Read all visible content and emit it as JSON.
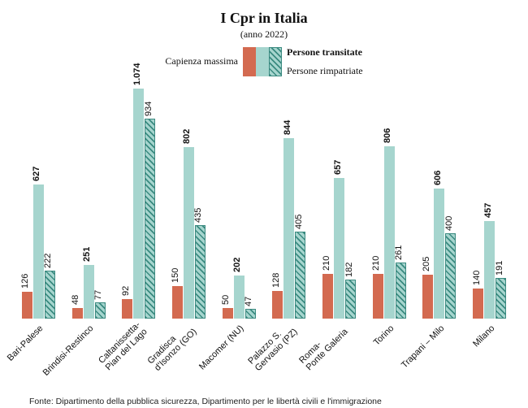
{
  "title": "I Cpr in Italia",
  "subtitle": "(anno 2022)",
  "legend": {
    "left": "Capienza\nmassima",
    "right_top": "Persone transitate",
    "right_bottom": "Persone rimpatriate"
  },
  "chart": {
    "type": "bar",
    "ymax": 1100,
    "bar_colors": {
      "capienza": "#d36a50",
      "transitate": "#a6d5ce",
      "rimpatriate_hatch": "#3a8a80"
    },
    "background_color": "#ffffff",
    "categories": [
      "Bari-Palese",
      "Brindisi-Restinco",
      "Caltanissetta-\nPian del Lago",
      "Gradisca\nd'Isonzo (GO)",
      "Macomer (NU)",
      "Palazzo S.\nGervasio (PZ)",
      "Roma-\nPonte Galeria",
      "Torino",
      "Trapani – Milo",
      "Milano"
    ],
    "series": {
      "capienza": [
        126,
        48,
        92,
        150,
        50,
        128,
        210,
        210,
        205,
        140
      ],
      "transitate": [
        627,
        251,
        1074,
        802,
        202,
        844,
        657,
        806,
        606,
        457
      ],
      "rimpatriate": [
        222,
        77,
        934,
        435,
        47,
        405,
        182,
        261,
        400,
        191
      ]
    },
    "value_font_size": 11,
    "label_font_size": 11
  },
  "source": "Fonte: Dipartimento della pubblica sicurezza, Dipartimento per le libertà civili e l'immigrazione"
}
